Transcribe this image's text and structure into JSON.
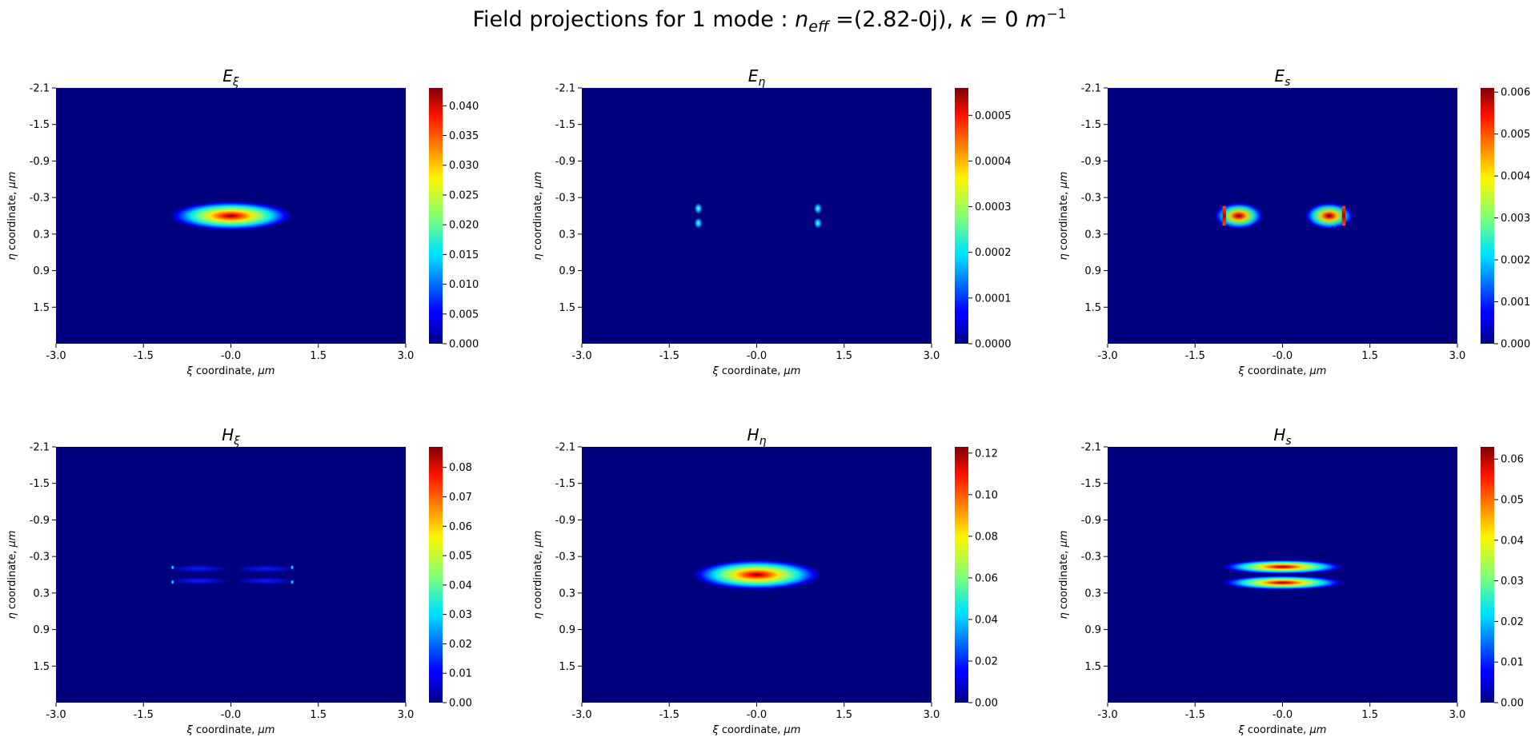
{
  "figure": {
    "title_prefix": "Field projections for 1 mode : ",
    "title_neff_value": " =(2.82-0j), ",
    "title_kappa_value": " = 0 ",
    "title_unit_exp": "−1"
  },
  "chart_data": [
    {
      "type": "heatmap",
      "title": "Eξ",
      "title_base": "E",
      "title_sub": "ξ",
      "xlabel": "ξ coordinate, μm",
      "ylabel": "η coordinate, μm",
      "xlim": [
        -3.0,
        3.0
      ],
      "ylim": [
        -2.1,
        2.1
      ],
      "xticks": [
        "-3.0",
        "-1.5",
        "-0.0",
        "1.5",
        "3.0"
      ],
      "yticks": [
        "-2.1",
        "-1.5",
        "-0.9",
        "-0.3",
        "0.3",
        "0.9",
        "1.5"
      ],
      "colorbar_range": [
        0,
        0.043
      ],
      "colorbar_ticks": [
        "0.000",
        "0.005",
        "0.010",
        "0.015",
        "0.020",
        "0.025",
        "0.030",
        "0.035",
        "0.040"
      ],
      "colorbar_values": [
        0,
        0.005,
        0.01,
        0.015,
        0.02,
        0.025,
        0.03,
        0.035,
        0.04
      ],
      "features": [
        {
          "kind": "blob",
          "x": 0.0,
          "y": 0.0,
          "rx": 1.05,
          "ry": 0.24,
          "level": 1.0
        }
      ]
    },
    {
      "type": "heatmap",
      "title": "Eη",
      "title_base": "E",
      "title_sub": "η",
      "xlabel": "ξ coordinate, μm",
      "ylabel": "η coordinate, μm",
      "xlim": [
        -3.0,
        3.0
      ],
      "ylim": [
        -2.1,
        2.1
      ],
      "xticks": [
        "-3.0",
        "-1.5",
        "-0.0",
        "1.5",
        "3.0"
      ],
      "yticks": [
        "-2.1",
        "-1.5",
        "-0.9",
        "-0.3",
        "0.3",
        "0.9",
        "1.5"
      ],
      "colorbar_range": [
        0,
        0.00056
      ],
      "colorbar_ticks": [
        "0.0000",
        "0.0001",
        "0.0002",
        "0.0003",
        "0.0004",
        "0.0005"
      ],
      "colorbar_values": [
        0,
        0.0001,
        0.0002,
        0.0003,
        0.0004,
        0.0005
      ],
      "features": [
        {
          "kind": "dot",
          "x": -1.0,
          "y": -0.12,
          "rx": 0.07,
          "ry": 0.09,
          "level": 0.45
        },
        {
          "kind": "dot",
          "x": -1.0,
          "y": 0.12,
          "rx": 0.07,
          "ry": 0.09,
          "level": 0.45
        },
        {
          "kind": "dot",
          "x": 1.05,
          "y": -0.12,
          "rx": 0.07,
          "ry": 0.09,
          "level": 0.45
        },
        {
          "kind": "dot",
          "x": 1.05,
          "y": 0.12,
          "rx": 0.07,
          "ry": 0.09,
          "level": 0.45
        }
      ]
    },
    {
      "type": "heatmap",
      "title": "Es",
      "title_base": "E",
      "title_sub": "s",
      "xlabel": "ξ coordinate, μm",
      "ylabel": "η coordinate, μm",
      "xlim": [
        -3.0,
        3.0
      ],
      "ylim": [
        -2.1,
        2.1
      ],
      "xticks": [
        "-3.0",
        "-1.5",
        "-0.0",
        "1.5",
        "3.0"
      ],
      "yticks": [
        "-2.1",
        "-1.5",
        "-0.9",
        "-0.3",
        "0.3",
        "0.9",
        "1.5"
      ],
      "colorbar_range": [
        0,
        0.0061
      ],
      "colorbar_ticks": [
        "0.000",
        "0.001",
        "0.002",
        "0.003",
        "0.004",
        "0.005",
        "0.006"
      ],
      "colorbar_values": [
        0,
        0.001,
        0.002,
        0.003,
        0.004,
        0.005,
        0.006
      ],
      "features": [
        {
          "kind": "blob",
          "x": -0.75,
          "y": 0.0,
          "rx": 0.42,
          "ry": 0.22,
          "level": 0.9
        },
        {
          "kind": "blob",
          "x": 0.8,
          "y": 0.0,
          "rx": 0.42,
          "ry": 0.22,
          "level": 0.9
        },
        {
          "kind": "bar",
          "x": -1.0,
          "y": 0.0,
          "rx": 0.03,
          "ry": 0.16,
          "level": 1.0
        },
        {
          "kind": "bar",
          "x": 1.05,
          "y": 0.0,
          "rx": 0.03,
          "ry": 0.16,
          "level": 1.0
        }
      ]
    },
    {
      "type": "heatmap",
      "title": "Hξ",
      "title_base": "H",
      "title_sub": "ξ",
      "xlabel": "ξ coordinate, μm",
      "ylabel": "η coordinate, μm",
      "xlim": [
        -3.0,
        3.0
      ],
      "ylim": [
        -2.1,
        2.1
      ],
      "xticks": [
        "-3.0",
        "-1.5",
        "-0.0",
        "1.5",
        "3.0"
      ],
      "yticks": [
        "-2.1",
        "-1.5",
        "-0.9",
        "-0.3",
        "0.3",
        "0.9",
        "1.5"
      ],
      "colorbar_range": [
        0,
        0.087
      ],
      "colorbar_ticks": [
        "0.00",
        "0.01",
        "0.02",
        "0.03",
        "0.04",
        "0.05",
        "0.06",
        "0.07",
        "0.08"
      ],
      "colorbar_values": [
        0,
        0.01,
        0.02,
        0.03,
        0.04,
        0.05,
        0.06,
        0.07,
        0.08
      ],
      "features": [
        {
          "kind": "stripe",
          "x": -0.55,
          "y": -0.1,
          "rx": 0.5,
          "ry": 0.06,
          "level": 0.12
        },
        {
          "kind": "stripe",
          "x": -0.55,
          "y": 0.1,
          "rx": 0.5,
          "ry": 0.06,
          "level": 0.12
        },
        {
          "kind": "stripe",
          "x": 0.6,
          "y": -0.1,
          "rx": 0.5,
          "ry": 0.06,
          "level": 0.12
        },
        {
          "kind": "stripe",
          "x": 0.6,
          "y": 0.1,
          "rx": 0.5,
          "ry": 0.06,
          "level": 0.12
        },
        {
          "kind": "dot",
          "x": -1.0,
          "y": -0.12,
          "rx": 0.03,
          "ry": 0.04,
          "level": 0.4
        },
        {
          "kind": "dot",
          "x": -1.0,
          "y": 0.12,
          "rx": 0.03,
          "ry": 0.04,
          "level": 0.4
        },
        {
          "kind": "dot",
          "x": 1.05,
          "y": -0.12,
          "rx": 0.03,
          "ry": 0.04,
          "level": 0.4
        },
        {
          "kind": "dot",
          "x": 1.05,
          "y": 0.12,
          "rx": 0.03,
          "ry": 0.04,
          "level": 0.4
        }
      ]
    },
    {
      "type": "heatmap",
      "title": "Hη",
      "title_base": "H",
      "title_sub": "η",
      "xlabel": "ξ coordinate, μm",
      "ylabel": "η coordinate, μm",
      "xlim": [
        -3.0,
        3.0
      ],
      "ylim": [
        -2.1,
        2.1
      ],
      "xticks": [
        "-3.0",
        "-1.5",
        "-0.0",
        "1.5",
        "3.0"
      ],
      "yticks": [
        "-2.1",
        "-1.5",
        "-0.9",
        "-0.3",
        "0.3",
        "0.9",
        "1.5"
      ],
      "colorbar_range": [
        0,
        0.123
      ],
      "colorbar_ticks": [
        "0.00",
        "0.02",
        "0.04",
        "0.06",
        "0.08",
        "0.10",
        "0.12"
      ],
      "colorbar_values": [
        0,
        0.02,
        0.04,
        0.06,
        0.08,
        0.1,
        0.12
      ],
      "features": [
        {
          "kind": "blob",
          "x": 0.0,
          "y": 0.0,
          "rx": 1.1,
          "ry": 0.25,
          "level": 1.0
        }
      ]
    },
    {
      "type": "heatmap",
      "title": "Hs",
      "title_base": "H",
      "title_sub": "s",
      "xlabel": "ξ coordinate, μm",
      "ylabel": "η coordinate, μm",
      "xlim": [
        -3.0,
        3.0
      ],
      "ylim": [
        -2.1,
        2.1
      ],
      "xticks": [
        "-3.0",
        "-1.5",
        "-0.0",
        "1.5",
        "3.0"
      ],
      "yticks": [
        "-2.1",
        "-1.5",
        "-0.9",
        "-0.3",
        "0.3",
        "0.9",
        "1.5"
      ],
      "colorbar_range": [
        0,
        0.063
      ],
      "colorbar_ticks": [
        "0.00",
        "0.01",
        "0.02",
        "0.03",
        "0.04",
        "0.05",
        "0.06"
      ],
      "colorbar_values": [
        0,
        0.01,
        0.02,
        0.03,
        0.04,
        0.05,
        0.06
      ],
      "features": [
        {
          "kind": "blob",
          "x": 0.0,
          "y": -0.13,
          "rx": 1.05,
          "ry": 0.12,
          "level": 1.0
        },
        {
          "kind": "blob",
          "x": 0.0,
          "y": 0.13,
          "rx": 1.05,
          "ry": 0.12,
          "level": 1.0
        }
      ]
    }
  ]
}
